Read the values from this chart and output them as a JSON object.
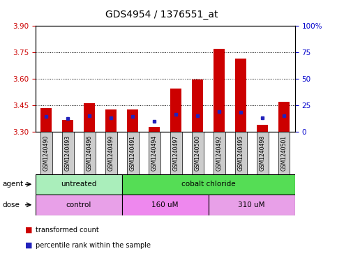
{
  "title": "GDS4954 / 1376551_at",
  "samples": [
    "GSM1240490",
    "GSM1240493",
    "GSM1240496",
    "GSM1240499",
    "GSM1240491",
    "GSM1240494",
    "GSM1240497",
    "GSM1240500",
    "GSM1240492",
    "GSM1240495",
    "GSM1240498",
    "GSM1240501"
  ],
  "red_values": [
    3.435,
    3.365,
    3.46,
    3.425,
    3.425,
    3.325,
    3.545,
    3.595,
    3.77,
    3.715,
    3.34,
    3.47
  ],
  "blue_percentiles": [
    14,
    12,
    15,
    13,
    14,
    10,
    16,
    15,
    19,
    18,
    13,
    15
  ],
  "ymin": 3.3,
  "ymax": 3.9,
  "yticks_left": [
    3.3,
    3.45,
    3.6,
    3.75,
    3.9
  ],
  "yticks_right": [
    0,
    25,
    50,
    75,
    100
  ],
  "grid_lines": [
    3.45,
    3.6,
    3.75
  ],
  "bar_color": "#cc0000",
  "blue_color": "#2222bb",
  "agent_groups": [
    {
      "label": "untreated",
      "start": 0,
      "end": 3,
      "color": "#aaeebb"
    },
    {
      "label": "cobalt chloride",
      "start": 4,
      "end": 11,
      "color": "#55dd55"
    }
  ],
  "dose_groups": [
    {
      "label": "control",
      "start": 0,
      "end": 3,
      "color": "#e8a0e8"
    },
    {
      "label": "160 uM",
      "start": 4,
      "end": 7,
      "color": "#ee88ee"
    },
    {
      "label": "310 uM",
      "start": 8,
      "end": 11,
      "color": "#e8a0e8"
    }
  ],
  "legend_red": "transformed count",
  "legend_blue": "percentile rank within the sample",
  "xlabel_agent": "agent",
  "xlabel_dose": "dose",
  "left_tick_color": "#cc0000",
  "right_tick_color": "#0000cc",
  "title_fontsize": 10,
  "tick_fontsize": 7.5,
  "bar_width": 0.5,
  "sample_fontsize": 5.5,
  "label_fontsize": 7.5,
  "box_bg": "#cccccc"
}
